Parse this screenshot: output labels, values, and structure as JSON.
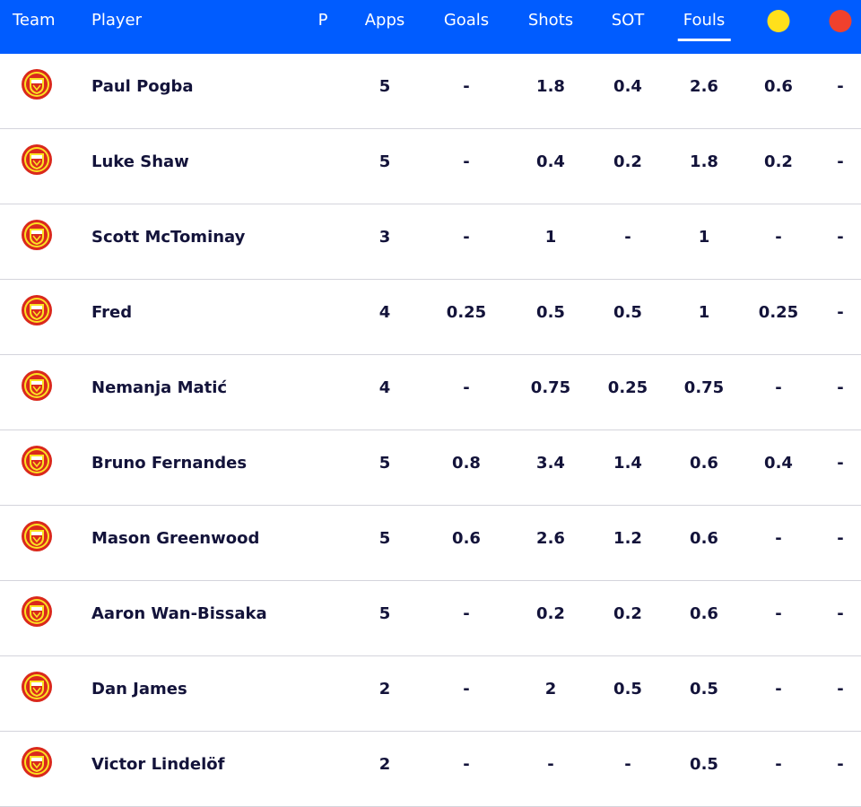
{
  "header": {
    "team": "Team",
    "player": "Player",
    "p": "P",
    "apps": "Apps",
    "goals": "Goals",
    "shots": "Shots",
    "sot": "SOT",
    "fouls": "Fouls",
    "yellow_card_icon": "yellow-card-icon",
    "red_card_icon": "red-card-icon",
    "active_sort": "Fouls"
  },
  "colors": {
    "header_bg": "#005cff",
    "yellow": "#ffe01b",
    "red": "#f0412d",
    "crest_red": "#da291c",
    "crest_gold": "#fbe122"
  },
  "rows": [
    {
      "team_icon": "man-utd-crest-icon",
      "player": "Paul Pogba",
      "apps": "5",
      "goals": "-",
      "shots": "1.8",
      "sot": "0.4",
      "fouls": "2.6",
      "yellow": "0.6",
      "red": "-"
    },
    {
      "team_icon": "man-utd-crest-icon",
      "player": "Luke Shaw",
      "apps": "5",
      "goals": "-",
      "shots": "0.4",
      "sot": "0.2",
      "fouls": "1.8",
      "yellow": "0.2",
      "red": "-"
    },
    {
      "team_icon": "man-utd-crest-icon",
      "player": "Scott McTominay",
      "apps": "3",
      "goals": "-",
      "shots": "1",
      "sot": "-",
      "fouls": "1",
      "yellow": "-",
      "red": "-"
    },
    {
      "team_icon": "man-utd-crest-icon",
      "player": "Fred",
      "apps": "4",
      "goals": "0.25",
      "shots": "0.5",
      "sot": "0.5",
      "fouls": "1",
      "yellow": "0.25",
      "red": "-"
    },
    {
      "team_icon": "man-utd-crest-icon",
      "player": "Nemanja Matić",
      "apps": "4",
      "goals": "-",
      "shots": "0.75",
      "sot": "0.25",
      "fouls": "0.75",
      "yellow": "-",
      "red": "-"
    },
    {
      "team_icon": "man-utd-crest-icon",
      "player": "Bruno Fernandes",
      "apps": "5",
      "goals": "0.8",
      "shots": "3.4",
      "sot": "1.4",
      "fouls": "0.6",
      "yellow": "0.4",
      "red": "-"
    },
    {
      "team_icon": "man-utd-crest-icon",
      "player": "Mason Greenwood",
      "apps": "5",
      "goals": "0.6",
      "shots": "2.6",
      "sot": "1.2",
      "fouls": "0.6",
      "yellow": "-",
      "red": "-"
    },
    {
      "team_icon": "man-utd-crest-icon",
      "player": "Aaron Wan-Bissaka",
      "apps": "5",
      "goals": "-",
      "shots": "0.2",
      "sot": "0.2",
      "fouls": "0.6",
      "yellow": "-",
      "red": "-"
    },
    {
      "team_icon": "man-utd-crest-icon",
      "player": "Dan James",
      "apps": "2",
      "goals": "-",
      "shots": "2",
      "sot": "0.5",
      "fouls": "0.5",
      "yellow": "-",
      "red": "-"
    },
    {
      "team_icon": "man-utd-crest-icon",
      "player": "Victor Lindelöf",
      "apps": "2",
      "goals": "-",
      "shots": "-",
      "sot": "-",
      "fouls": "0.5",
      "yellow": "-",
      "red": "-"
    }
  ]
}
